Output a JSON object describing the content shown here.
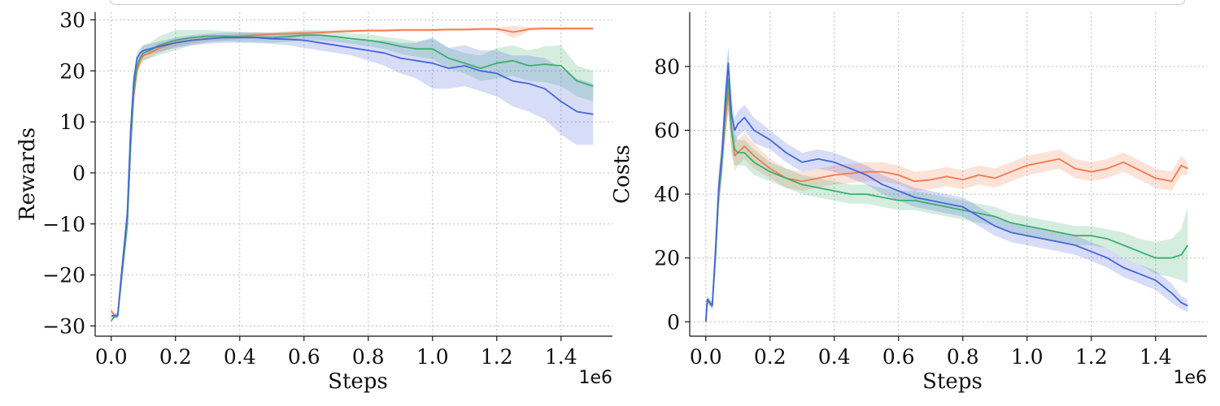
{
  "legend_frame": "",
  "colors": {
    "orange": "#f4794c",
    "green": "#3cae6e",
    "blue": "#4766da"
  },
  "chart_data": [
    {
      "type": "line",
      "title": "",
      "xlabel": "Steps",
      "ylabel": "Rewards",
      "x_offset_label": "1e6",
      "xlim": [
        -0.05,
        1.56
      ],
      "ylim": [
        -32,
        31.5
      ],
      "xticks": [
        0.0,
        0.2,
        0.4,
        0.6,
        0.8,
        1.0,
        1.2,
        1.4
      ],
      "xtick_labels": [
        "0.0",
        "0.2",
        "0.4",
        "0.6",
        "0.8",
        "1.0",
        "1.2",
        "1.4"
      ],
      "yticks": [
        30,
        20,
        10,
        0,
        -10,
        -20,
        -30
      ],
      "ytick_labels": [
        "30",
        "20",
        "10",
        "0",
        "−10",
        "−20",
        "−30"
      ],
      "grid": true,
      "series": [
        {
          "name": "orange",
          "color": "#f4794c",
          "x": [
            0.0,
            0.01,
            0.02,
            0.03,
            0.05,
            0.06,
            0.07,
            0.08,
            0.09,
            0.1,
            0.12,
            0.15,
            0.2,
            0.25,
            0.3,
            0.35,
            0.4,
            0.45,
            0.5,
            0.55,
            0.6,
            0.65,
            0.7,
            0.75,
            0.8,
            0.85,
            0.9,
            0.95,
            1.0,
            1.05,
            1.1,
            1.15,
            1.2,
            1.22,
            1.25,
            1.28,
            1.3,
            1.35,
            1.4,
            1.45,
            1.5
          ],
          "y": [
            -27,
            -28,
            -28,
            -22,
            -10,
            5,
            15,
            20,
            22,
            23,
            23.5,
            24.5,
            25.5,
            26,
            26.3,
            26.5,
            26.8,
            27,
            27.2,
            27.3,
            27.4,
            27.5,
            27.7,
            27.8,
            27.9,
            27.9,
            28,
            28,
            28,
            28.1,
            28.1,
            28.2,
            28.2,
            28,
            27.6,
            27.9,
            28.2,
            28.3,
            28.3,
            28.3,
            28.3
          ],
          "band_halfwidth": [
            0,
            0.5,
            0.5,
            1,
            2,
            2,
            1.5,
            1.2,
            1,
            1,
            1,
            1,
            0.8,
            0.6,
            0.5,
            0.5,
            0.5,
            0.4,
            0.4,
            0.4,
            0.4,
            0.3,
            0.3,
            0.3,
            0.3,
            0.3,
            0.3,
            0.3,
            0.3,
            0.3,
            0.3,
            0.3,
            0.3,
            0.6,
            1.2,
            0.8,
            0.4,
            0.3,
            0.3,
            0.3,
            0.3
          ]
        },
        {
          "name": "green",
          "color": "#3cae6e",
          "x": [
            0.0,
            0.01,
            0.02,
            0.03,
            0.05,
            0.06,
            0.07,
            0.08,
            0.09,
            0.1,
            0.12,
            0.15,
            0.2,
            0.25,
            0.3,
            0.35,
            0.4,
            0.45,
            0.5,
            0.55,
            0.6,
            0.65,
            0.7,
            0.75,
            0.8,
            0.85,
            0.9,
            0.95,
            1.0,
            1.05,
            1.1,
            1.15,
            1.2,
            1.25,
            1.3,
            1.35,
            1.4,
            1.45,
            1.5
          ],
          "y": [
            -29,
            -28,
            -28,
            -22,
            -10,
            5,
            16,
            21,
            22.5,
            23.5,
            24,
            25,
            26,
            26.5,
            26.8,
            26.8,
            26.7,
            26.6,
            26.5,
            26.7,
            27,
            27,
            26.7,
            26.3,
            26,
            25.5,
            24.8,
            24.3,
            24.3,
            22.5,
            21.5,
            20.5,
            21.5,
            22,
            21,
            21.3,
            21,
            18,
            17
          ],
          "band_halfwidth": [
            0,
            0.5,
            0.5,
            1,
            2,
            2,
            1.5,
            1.2,
            1.5,
            1.5,
            1.5,
            1.8,
            2,
            1.5,
            1.2,
            1,
            1,
            1,
            1,
            1,
            1,
            1,
            1,
            1,
            1.2,
            1.2,
            1.5,
            1.5,
            2,
            2,
            2,
            2.5,
            3,
            3,
            3,
            3.5,
            4,
            3,
            3
          ]
        },
        {
          "name": "blue",
          "color": "#4766da",
          "x": [
            0.0,
            0.01,
            0.02,
            0.03,
            0.05,
            0.06,
            0.07,
            0.08,
            0.09,
            0.1,
            0.12,
            0.15,
            0.2,
            0.25,
            0.3,
            0.35,
            0.4,
            0.45,
            0.5,
            0.55,
            0.6,
            0.65,
            0.7,
            0.75,
            0.8,
            0.85,
            0.9,
            0.95,
            1.0,
            1.05,
            1.1,
            1.15,
            1.2,
            1.25,
            1.3,
            1.35,
            1.4,
            1.45,
            1.5
          ],
          "y": [
            -28,
            -28,
            -28,
            -21,
            -8,
            8,
            18,
            22.5,
            23.5,
            24,
            24.3,
            24.8,
            25.5,
            26,
            26.3,
            26.5,
            26.5,
            26.5,
            26.3,
            26.2,
            26,
            25.5,
            25,
            24.5,
            24,
            23.5,
            22.5,
            22,
            21.5,
            20.5,
            21,
            20,
            19.5,
            18,
            17.5,
            16.5,
            14,
            12,
            11.5
          ],
          "band_halfwidth": [
            0,
            0.5,
            0.5,
            1,
            2,
            2,
            1.5,
            1,
            1,
            1,
            1,
            1,
            1,
            1,
            1,
            1,
            1,
            1,
            1,
            1.2,
            1.5,
            1.5,
            1.5,
            1.5,
            2,
            2.5,
            3,
            3.5,
            5,
            4,
            4,
            4,
            4.5,
            5,
            5.5,
            6,
            6.5,
            6.5,
            6
          ]
        }
      ]
    },
    {
      "type": "line",
      "title": "",
      "xlabel": "Steps",
      "ylabel": "Costs",
      "x_offset_label": "1e6",
      "xlim": [
        -0.05,
        1.56
      ],
      "ylim": [
        -4.5,
        97
      ],
      "xticks": [
        0.0,
        0.2,
        0.4,
        0.6,
        0.8,
        1.0,
        1.2,
        1.4
      ],
      "xtick_labels": [
        "0.0",
        "0.2",
        "0.4",
        "0.6",
        "0.8",
        "1.0",
        "1.2",
        "1.4"
      ],
      "yticks": [
        80,
        60,
        40,
        20,
        0
      ],
      "ytick_labels": [
        "80",
        "60",
        "40",
        "20",
        "0"
      ],
      "grid": true,
      "series": [
        {
          "name": "orange",
          "color": "#f4794c",
          "x": [
            0.0,
            0.005,
            0.02,
            0.03,
            0.04,
            0.05,
            0.06,
            0.07,
            0.08,
            0.09,
            0.1,
            0.12,
            0.15,
            0.2,
            0.25,
            0.3,
            0.35,
            0.4,
            0.45,
            0.5,
            0.55,
            0.6,
            0.65,
            0.7,
            0.75,
            0.8,
            0.85,
            0.9,
            0.95,
            1.0,
            1.05,
            1.1,
            1.15,
            1.2,
            1.25,
            1.3,
            1.35,
            1.4,
            1.45,
            1.48,
            1.5
          ],
          "y": [
            0,
            7,
            5,
            20,
            40,
            50,
            62,
            72,
            60,
            52,
            53,
            55,
            52,
            48,
            45,
            44,
            45,
            46,
            46.5,
            47,
            47,
            46,
            44,
            44.5,
            45.5,
            44.5,
            46,
            45,
            47,
            49,
            50,
            51,
            48,
            47,
            48,
            50,
            47.5,
            45,
            44,
            49,
            48
          ],
          "band_halfwidth": [
            0,
            1,
            1,
            3,
            5,
            5,
            6,
            6,
            6,
            5,
            4,
            4,
            4,
            3,
            3,
            3,
            3,
            3,
            3,
            3,
            3,
            3,
            3,
            3,
            3,
            3,
            3,
            3,
            3,
            3,
            3,
            3,
            3,
            3,
            3,
            3,
            3,
            3,
            3,
            3,
            2
          ]
        },
        {
          "name": "green",
          "color": "#3cae6e",
          "x": [
            0.0,
            0.005,
            0.02,
            0.03,
            0.04,
            0.05,
            0.06,
            0.07,
            0.08,
            0.09,
            0.1,
            0.12,
            0.15,
            0.2,
            0.25,
            0.3,
            0.35,
            0.4,
            0.45,
            0.5,
            0.55,
            0.6,
            0.65,
            0.7,
            0.75,
            0.8,
            0.85,
            0.9,
            0.95,
            1.0,
            1.05,
            1.1,
            1.15,
            1.2,
            1.25,
            1.3,
            1.35,
            1.4,
            1.45,
            1.48,
            1.5
          ],
          "y": [
            0,
            7,
            5,
            20,
            40,
            50,
            65,
            76,
            60,
            54,
            53,
            53,
            50,
            47,
            45,
            43,
            42,
            41,
            40,
            40,
            39,
            38,
            38,
            37,
            36,
            35,
            34,
            33,
            31,
            30,
            29,
            28,
            27,
            27,
            26,
            24,
            22,
            20,
            20,
            21,
            24
          ],
          "band_halfwidth": [
            0,
            1,
            1,
            3,
            5,
            6,
            8,
            10,
            7,
            5,
            4,
            4,
            4,
            3,
            3,
            3,
            3,
            3,
            3,
            3,
            3,
            3,
            3,
            3,
            3,
            3,
            3,
            3,
            3,
            3,
            3,
            3,
            3,
            3,
            3,
            4,
            4,
            5,
            6,
            8,
            12
          ]
        },
        {
          "name": "blue",
          "color": "#4766da",
          "x": [
            0.0,
            0.005,
            0.02,
            0.03,
            0.04,
            0.05,
            0.06,
            0.07,
            0.08,
            0.09,
            0.1,
            0.12,
            0.15,
            0.2,
            0.25,
            0.3,
            0.35,
            0.4,
            0.45,
            0.5,
            0.55,
            0.6,
            0.65,
            0.7,
            0.75,
            0.8,
            0.85,
            0.9,
            0.95,
            1.0,
            1.05,
            1.1,
            1.15,
            1.2,
            1.25,
            1.3,
            1.35,
            1.4,
            1.45,
            1.48,
            1.5
          ],
          "y": [
            0,
            7,
            5,
            22,
            42,
            52,
            68,
            81,
            65,
            60,
            62,
            64,
            60,
            57,
            53,
            50,
            51,
            50,
            48,
            46,
            43,
            41,
            39,
            38,
            37,
            36,
            33,
            30,
            28,
            27,
            26,
            25,
            24,
            22,
            20,
            17,
            15,
            13,
            9,
            6,
            5
          ],
          "band_halfwidth": [
            0,
            1,
            1,
            3,
            5,
            6,
            6,
            5,
            5,
            4,
            4,
            4,
            4,
            3,
            3,
            3,
            3,
            3,
            3,
            3,
            3,
            3,
            3,
            3,
            3,
            3,
            3,
            3,
            3,
            3,
            3,
            3,
            3,
            3,
            3,
            3,
            3,
            3,
            3,
            2,
            2
          ]
        }
      ]
    }
  ]
}
